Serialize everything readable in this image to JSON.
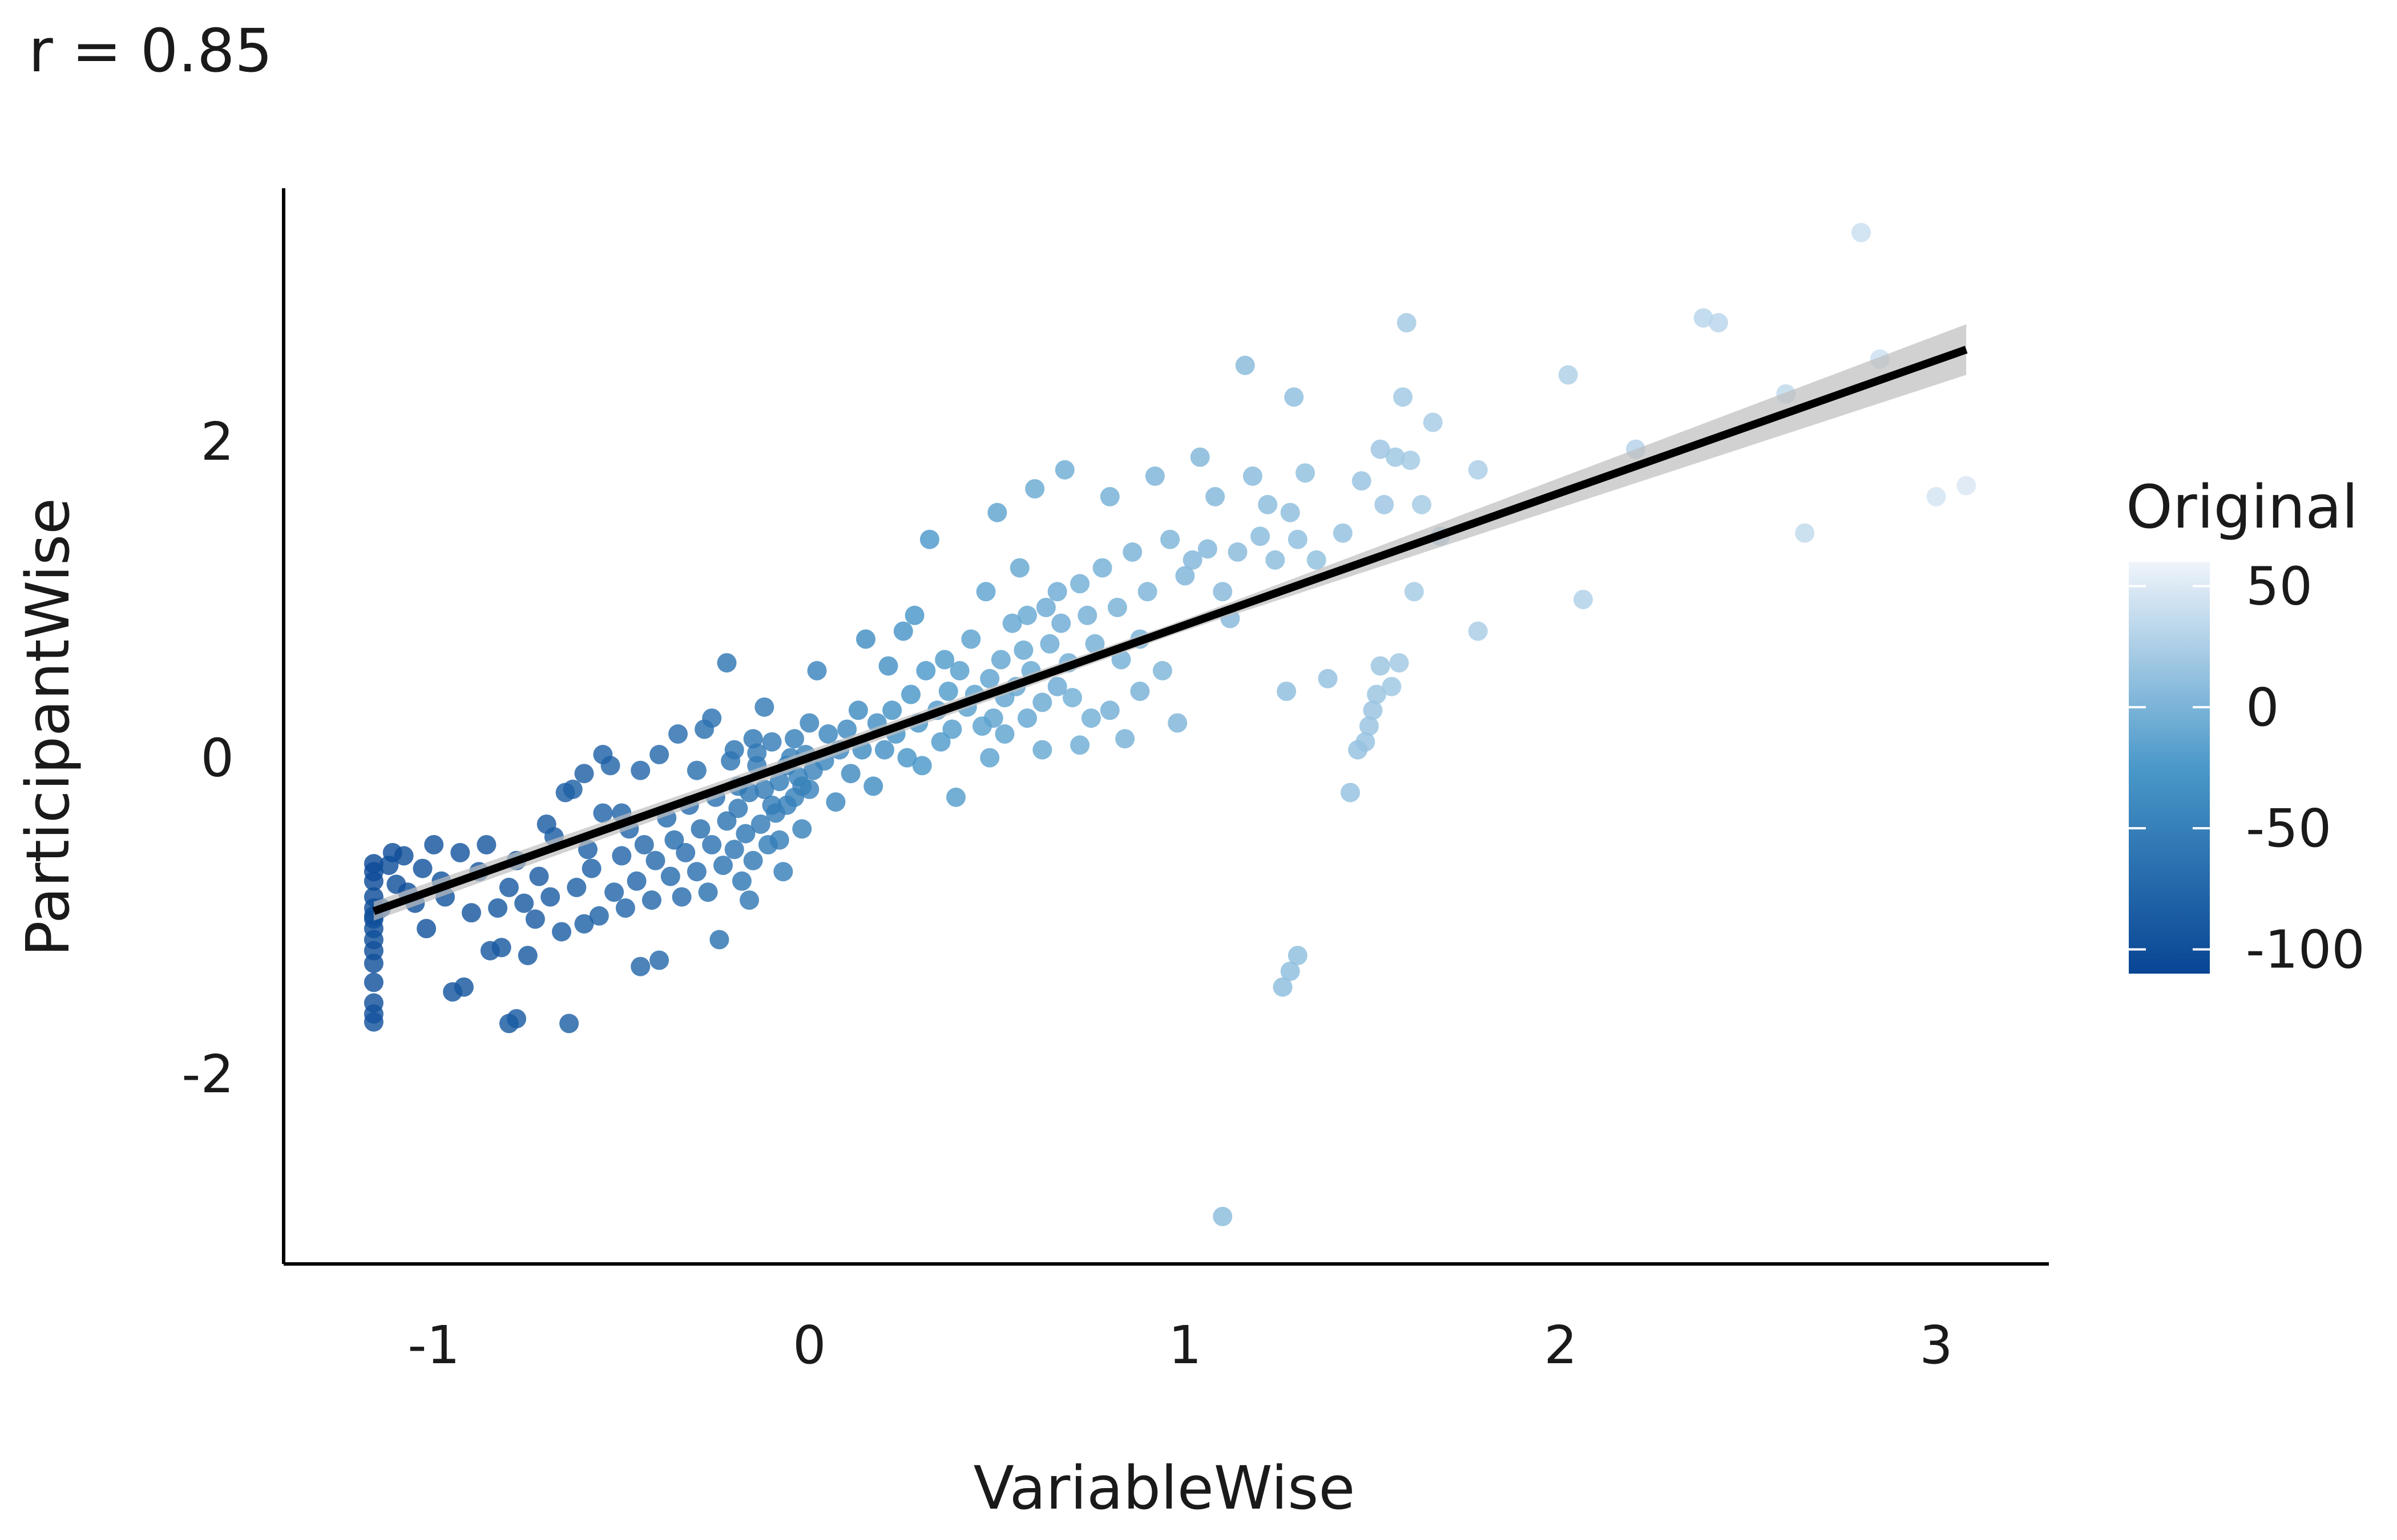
{
  "title": "r = 0.85",
  "chart_data": {
    "type": "scatter",
    "title": "r = 0.85",
    "xlabel": "VariableWise",
    "ylabel": "ParticipantWise",
    "xlim": [
      -1.4,
      3.3
    ],
    "ylim": [
      -3.2,
      3.6
    ],
    "x_ticks": [
      -1,
      0,
      1,
      2,
      3
    ],
    "y_ticks": [
      -2,
      0,
      2
    ],
    "grid": false,
    "regression": {
      "x0": -1.16,
      "y0": -0.97,
      "x1": 3.08,
      "y1": 2.58,
      "ci": [
        [
          -1.16,
          0.06
        ],
        [
          1.0,
          0.035
        ],
        [
          3.08,
          0.16
        ]
      ],
      "color": "#000000",
      "band_color": "#bdbdbd"
    },
    "legend": {
      "title": "Original",
      "placement": "right",
      "ticks": [
        50,
        0,
        -50,
        -100
      ],
      "range": [
        -110,
        60
      ],
      "color_low": "#084594",
      "color_mid": "#4a98c9",
      "color_high": "#f0f4fb"
    },
    "points": [
      [
        -1.16,
        -0.67,
        -105
      ],
      [
        -1.16,
        -0.72,
        -104
      ],
      [
        -1.16,
        -0.78,
        -103
      ],
      [
        -1.16,
        -0.88,
        -102
      ],
      [
        -1.16,
        -0.95,
        -101
      ],
      [
        -1.16,
        -1.02,
        -100
      ],
      [
        -1.16,
        -1.08,
        -100
      ],
      [
        -1.16,
        -1.15,
        -99
      ],
      [
        -1.16,
        -1.22,
        -99
      ],
      [
        -1.16,
        -1.3,
        -98
      ],
      [
        -1.16,
        -1.42,
        -97
      ],
      [
        -1.16,
        -1.55,
        -97
      ],
      [
        -1.16,
        -1.62,
        -96
      ],
      [
        -1.16,
        -1.67,
        -96
      ],
      [
        -1.16,
        -1.0,
        -100
      ],
      [
        -1.12,
        -0.68,
        -100
      ],
      [
        -1.1,
        -0.8,
        -99
      ],
      [
        -1.08,
        -0.62,
        -98
      ],
      [
        -1.05,
        -0.92,
        -97
      ],
      [
        -1.03,
        -0.7,
        -96
      ],
      [
        -1.02,
        -1.08,
        -96
      ],
      [
        -1.0,
        -0.55,
        -95
      ],
      [
        -0.98,
        -0.78,
        -95
      ],
      [
        -0.97,
        -0.88,
        -94
      ],
      [
        -0.95,
        -1.48,
        -94
      ],
      [
        -0.93,
        -0.6,
        -93
      ],
      [
        -0.92,
        -1.45,
        -92
      ],
      [
        -0.9,
        -0.98,
        -92
      ],
      [
        -0.88,
        -0.72,
        -91
      ],
      [
        -0.86,
        -0.55,
        -91
      ],
      [
        -0.85,
        -1.22,
        -90
      ],
      [
        -0.83,
        -0.95,
        -89
      ],
      [
        -0.82,
        -1.2,
        -89
      ],
      [
        -0.8,
        -0.82,
        -88
      ],
      [
        -0.78,
        -0.65,
        -88
      ],
      [
        -0.76,
        -0.92,
        -87
      ],
      [
        -0.75,
        -1.25,
        -87
      ],
      [
        -0.73,
        -1.02,
        -86
      ],
      [
        -0.72,
        -0.75,
        -86
      ],
      [
        -0.7,
        -0.42,
        -85
      ],
      [
        -0.69,
        -0.88,
        -84
      ],
      [
        -0.68,
        -0.5,
        -84
      ],
      [
        -0.66,
        -1.1,
        -83
      ],
      [
        -0.65,
        -0.22,
        -83
      ],
      [
        -0.64,
        -1.68,
        -82
      ],
      [
        -0.63,
        -0.2,
        -82
      ],
      [
        -0.62,
        -0.82,
        -81
      ],
      [
        -0.6,
        -1.05,
        -81
      ],
      [
        -0.59,
        -0.58,
        -80
      ],
      [
        -0.58,
        -0.7,
        -80
      ],
      [
        -0.56,
        -1.0,
        -79
      ],
      [
        -0.55,
        -0.35,
        -78
      ],
      [
        -0.53,
        -0.05,
        -78
      ],
      [
        -0.52,
        -0.85,
        -77
      ],
      [
        -0.5,
        -0.62,
        -77
      ],
      [
        -0.49,
        -0.95,
        -76
      ],
      [
        -0.48,
        -0.45,
        -75
      ],
      [
        -0.46,
        -0.78,
        -75
      ],
      [
        -0.45,
        -1.32,
        -74
      ],
      [
        -0.44,
        -0.55,
        -74
      ],
      [
        -0.42,
        -0.9,
        -73
      ],
      [
        -0.41,
        -0.65,
        -72
      ],
      [
        -0.4,
        -1.28,
        -72
      ],
      [
        -0.38,
        -0.38,
        -71
      ],
      [
        -0.37,
        -0.75,
        -70
      ],
      [
        -0.36,
        -0.52,
        -70
      ],
      [
        -0.34,
        -0.88,
        -69
      ],
      [
        -0.33,
        -0.6,
        -68
      ],
      [
        -0.32,
        -0.3,
        -68
      ],
      [
        -0.3,
        -0.72,
        -67
      ],
      [
        -0.29,
        -0.45,
        -66
      ],
      [
        -0.28,
        0.18,
        -66
      ],
      [
        -0.27,
        -0.85,
        -65
      ],
      [
        -0.26,
        -0.55,
        -64
      ],
      [
        -0.25,
        -0.25,
        -64
      ],
      [
        -0.24,
        -1.15,
        -63
      ],
      [
        -0.23,
        -0.68,
        -62
      ],
      [
        -0.22,
        -0.4,
        -62
      ],
      [
        -0.21,
        -0.02,
        -61
      ],
      [
        -0.2,
        -0.58,
        -60
      ],
      [
        -0.19,
        -0.32,
        -60
      ],
      [
        -0.18,
        -0.78,
        -59
      ],
      [
        -0.17,
        -0.48,
        -58
      ],
      [
        -0.16,
        -0.22,
        -58
      ],
      [
        -0.15,
        -0.65,
        -57
      ],
      [
        -0.14,
        0.03,
        -56
      ],
      [
        -0.13,
        -0.42,
        -55
      ],
      [
        -0.12,
        -0.2,
        -55
      ],
      [
        -0.11,
        -0.55,
        -54
      ],
      [
        -0.1,
        0.1,
        -53
      ],
      [
        -0.09,
        -0.35,
        -53
      ],
      [
        -0.08,
        -0.15,
        -52
      ],
      [
        -0.07,
        -0.72,
        -51
      ],
      [
        -0.06,
        -0.3,
        -50
      ],
      [
        -0.05,
        0.0,
        -50
      ],
      [
        -0.04,
        -0.25,
        -49
      ],
      [
        -0.03,
        -0.12,
        -48
      ],
      [
        -0.02,
        -0.45,
        -48
      ],
      [
        -0.01,
        0.02,
        -47
      ],
      [
        0.0,
        -0.2,
        -46
      ],
      [
        -0.22,
        0.6,
        -60
      ],
      [
        -0.19,
        -0.18,
        -58
      ],
      [
        -0.16,
        -0.9,
        -57
      ],
      [
        -0.14,
        -0.05,
        -56
      ],
      [
        -0.12,
        0.32,
        -55
      ],
      [
        -0.1,
        -0.3,
        -54
      ],
      [
        -0.08,
        -0.52,
        -52
      ],
      [
        -0.06,
        -0.05,
        -51
      ],
      [
        -0.04,
        0.12,
        -50
      ],
      [
        -0.02,
        -0.18,
        -49
      ],
      [
        0.0,
        0.22,
        -47
      ],
      [
        0.01,
        -0.08,
        -46
      ],
      [
        0.02,
        0.55,
        -45
      ],
      [
        0.04,
        -0.02,
        -44
      ],
      [
        0.05,
        0.15,
        -43
      ],
      [
        0.07,
        -0.28,
        -42
      ],
      [
        0.08,
        0.05,
        -41
      ],
      [
        0.1,
        0.18,
        -40
      ],
      [
        0.11,
        -0.1,
        -39
      ],
      [
        0.13,
        0.3,
        -38
      ],
      [
        0.14,
        0.05,
        -37
      ],
      [
        0.15,
        0.75,
        -36
      ],
      [
        0.17,
        -0.18,
        -35
      ],
      [
        0.18,
        0.22,
        -34
      ],
      [
        0.2,
        0.05,
        -33
      ],
      [
        0.21,
        0.58,
        -32
      ],
      [
        0.22,
        0.3,
        -31
      ],
      [
        0.23,
        0.15,
        -30
      ],
      [
        0.25,
        0.8,
        -29
      ],
      [
        0.26,
        0.0,
        -28
      ],
      [
        0.27,
        0.4,
        -27
      ],
      [
        0.28,
        0.9,
        -27
      ],
      [
        0.29,
        0.22,
        -26
      ],
      [
        0.3,
        -0.05,
        -25
      ],
      [
        0.31,
        0.55,
        -24
      ],
      [
        0.32,
        1.38,
        -24
      ],
      [
        0.34,
        0.3,
        -23
      ],
      [
        0.35,
        0.1,
        -22
      ],
      [
        0.36,
        0.62,
        -21
      ],
      [
        0.37,
        0.42,
        -21
      ],
      [
        0.38,
        0.18,
        -20
      ],
      [
        0.39,
        -0.25,
        -20
      ],
      [
        0.4,
        0.55,
        -19
      ],
      [
        0.42,
        0.32,
        -18
      ],
      [
        0.43,
        0.75,
        -17
      ],
      [
        0.44,
        0.4,
        -17
      ],
      [
        0.46,
        0.2,
        -16
      ],
      [
        0.47,
        1.05,
        -15
      ],
      [
        0.48,
        0.5,
        -15
      ],
      [
        0.49,
        0.25,
        -14
      ],
      [
        0.5,
        1.55,
        -14
      ],
      [
        0.51,
        0.62,
        -13
      ],
      [
        0.52,
        0.38,
        -13
      ],
      [
        0.54,
        0.85,
        -12
      ],
      [
        0.55,
        0.45,
        -12
      ],
      [
        0.56,
        1.2,
        -11
      ],
      [
        0.57,
        0.68,
        -11
      ],
      [
        0.58,
        0.9,
        -10
      ],
      [
        0.59,
        0.55,
        -10
      ],
      [
        0.6,
        1.7,
        -9
      ],
      [
        0.62,
        0.35,
        -9
      ],
      [
        0.63,
        0.95,
        -8
      ],
      [
        0.64,
        0.72,
        -8
      ],
      [
        0.66,
        1.05,
        -7
      ],
      [
        0.67,
        0.85,
        -7
      ],
      [
        0.68,
        1.82,
        -6
      ],
      [
        0.69,
        0.6,
        -6
      ],
      [
        0.7,
        0.38,
        -5
      ],
      [
        0.72,
        1.1,
        -5
      ],
      [
        0.74,
        0.9,
        -4
      ],
      [
        0.76,
        0.72,
        -4
      ],
      [
        0.78,
        1.2,
        -3
      ],
      [
        0.8,
        1.65,
        -3
      ],
      [
        0.82,
        0.95,
        -2
      ],
      [
        0.84,
        0.12,
        -2
      ],
      [
        0.86,
        1.3,
        -1
      ],
      [
        0.88,
        0.75,
        -1
      ],
      [
        0.9,
        1.05,
        0
      ],
      [
        0.92,
        1.78,
        0
      ],
      [
        0.94,
        0.55,
        1
      ],
      [
        0.96,
        1.38,
        1
      ],
      [
        0.98,
        0.22,
        2
      ],
      [
        1.0,
        1.15,
        2
      ],
      [
        1.02,
        1.25,
        3
      ],
      [
        1.04,
        1.9,
        3
      ],
      [
        1.06,
        1.32,
        4
      ],
      [
        1.08,
        1.65,
        4
      ],
      [
        1.1,
        1.05,
        5
      ],
      [
        1.12,
        0.88,
        5
      ],
      [
        1.14,
        1.3,
        6
      ],
      [
        1.16,
        2.48,
        6
      ],
      [
        1.18,
        1.78,
        7
      ],
      [
        1.2,
        1.4,
        7
      ],
      [
        1.22,
        1.6,
        8
      ],
      [
        1.24,
        1.25,
        8
      ],
      [
        1.27,
        0.42,
        9
      ],
      [
        1.28,
        1.55,
        9
      ],
      [
        1.29,
        2.28,
        10
      ],
      [
        1.3,
        1.38,
        10
      ],
      [
        1.32,
        1.8,
        11
      ],
      [
        1.35,
        1.25,
        11
      ],
      [
        1.38,
        0.5,
        12
      ],
      [
        1.42,
        1.42,
        12
      ],
      [
        1.44,
        -0.22,
        13
      ],
      [
        1.46,
        0.05,
        13
      ],
      [
        1.47,
        1.75,
        14
      ],
      [
        1.48,
        0.1,
        14
      ],
      [
        1.49,
        0.2,
        15
      ],
      [
        1.5,
        0.3,
        15
      ],
      [
        1.51,
        0.4,
        16
      ],
      [
        1.52,
        0.58,
        16
      ],
      [
        1.52,
        1.95,
        17
      ],
      [
        1.53,
        1.6,
        17
      ],
      [
        1.55,
        0.45,
        18
      ],
      [
        1.56,
        1.9,
        18
      ],
      [
        1.57,
        0.6,
        19
      ],
      [
        1.58,
        2.28,
        19
      ],
      [
        1.59,
        2.75,
        20
      ],
      [
        1.6,
        1.88,
        20
      ],
      [
        1.61,
        1.05,
        21
      ],
      [
        1.63,
        1.6,
        21
      ],
      [
        1.66,
        2.12,
        22
      ],
      [
        1.68,
        1.4,
        22
      ],
      [
        1.78,
        0.8,
        23
      ],
      [
        1.78,
        1.82,
        24
      ],
      [
        2.02,
        2.42,
        26
      ],
      [
        2.06,
        1.0,
        27
      ],
      [
        2.2,
        1.95,
        29
      ],
      [
        2.38,
        2.78,
        31
      ],
      [
        2.42,
        2.75,
        32
      ],
      [
        2.6,
        2.3,
        35
      ],
      [
        2.65,
        1.42,
        36
      ],
      [
        2.8,
        3.32,
        40
      ],
      [
        2.85,
        2.52,
        41
      ],
      [
        3.0,
        1.65,
        45
      ],
      [
        3.08,
        1.72,
        48
      ],
      [
        1.1,
        -2.9,
        8
      ],
      [
        1.26,
        -1.45,
        9
      ],
      [
        1.28,
        -1.35,
        9
      ],
      [
        1.3,
        -1.25,
        10
      ],
      [
        -0.78,
        -1.65,
        -88
      ],
      [
        -0.8,
        -1.68,
        -89
      ],
      [
        -1.14,
        -0.95,
        -103
      ],
      [
        -1.11,
        -0.6,
        -101
      ],
      [
        -1.07,
        -0.85,
        -99
      ],
      [
        0.48,
        0.0,
        -16
      ],
      [
        0.52,
        0.15,
        -14
      ],
      [
        0.58,
        0.25,
        -12
      ],
      [
        0.62,
        0.05,
        -10
      ],
      [
        0.66,
        0.45,
        -8
      ],
      [
        0.72,
        0.08,
        -6
      ],
      [
        0.75,
        0.25,
        -5
      ],
      [
        0.8,
        0.3,
        -4
      ],
      [
        0.83,
        0.62,
        -3
      ],
      [
        0.88,
        0.42,
        -2
      ],
      [
        -0.35,
        0.15,
        -68
      ],
      [
        -0.3,
        -0.08,
        -66
      ],
      [
        -0.26,
        0.25,
        -64
      ],
      [
        -0.2,
        0.05,
        -61
      ],
      [
        -0.15,
        0.12,
        -58
      ],
      [
        -0.5,
        -0.35,
        -78
      ],
      [
        -0.45,
        -0.08,
        -75
      ],
      [
        -0.4,
        0.02,
        -73
      ],
      [
        -0.55,
        0.02,
        -80
      ],
      [
        -0.6,
        -0.1,
        -82
      ]
    ]
  }
}
